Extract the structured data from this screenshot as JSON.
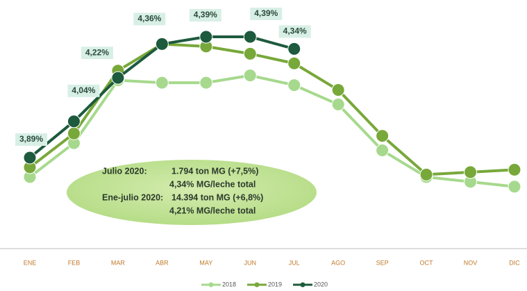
{
  "chart_data": {
    "type": "line",
    "categories": [
      "ENE",
      "FEB",
      "MAR",
      "ABR",
      "MAY",
      "JUN",
      "JUL",
      "AGO",
      "SEP",
      "OCT",
      "NOV",
      "DIC"
    ],
    "ylim": [
      3.5,
      4.5
    ],
    "series": [
      {
        "name": "2018",
        "color": "#a6d98d",
        "values": [
          3.81,
          3.95,
          4.21,
          4.2,
          4.2,
          4.23,
          4.19,
          4.11,
          3.92,
          3.81,
          3.79,
          3.77
        ]
      },
      {
        "name": "2019",
        "color": "#78a83a",
        "values": [
          3.85,
          3.99,
          4.25,
          4.36,
          4.35,
          4.32,
          4.28,
          4.17,
          3.98,
          3.82,
          3.83,
          3.84
        ]
      },
      {
        "name": "2020",
        "color": "#1d5a3e",
        "values": [
          3.89,
          4.04,
          4.22,
          4.36,
          4.39,
          4.39,
          4.34,
          null,
          null,
          null,
          null,
          null
        ],
        "value_labels": [
          "3,89%",
          "4,04%",
          "4,22%",
          "4,36%",
          "4,39%",
          "4,39%",
          "4,34%",
          null,
          null,
          null,
          null,
          null
        ]
      }
    ],
    "annotations": [
      "Julio 2020:",
      "1.794 ton MG (+7,5%)",
      "4,34% MG/leche total",
      "Ene-julio 2020:",
      "14.394 ton MG (+6,8%)",
      "4,21% MG/leche total"
    ],
    "legend": "bottom"
  }
}
